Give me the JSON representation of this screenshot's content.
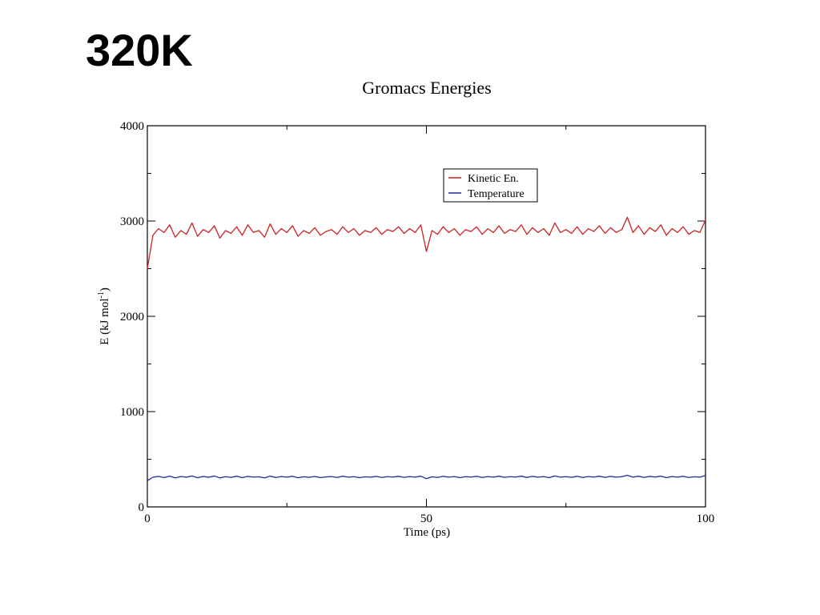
{
  "slide": {
    "title": "320K"
  },
  "chart_data": {
    "type": "line",
    "title": "Gromacs Energies",
    "xlabel": "Time (ps)",
    "ylabel": {
      "base": "E (kJ mol",
      "sup": "-1",
      "close": ")"
    },
    "xlim": [
      0,
      100
    ],
    "ylim": [
      0,
      4000
    ],
    "xticks": [
      0,
      50,
      100
    ],
    "yticks": [
      0,
      1000,
      2000,
      3000,
      4000
    ],
    "grid": false,
    "legend_position": "top-right",
    "series": [
      {
        "name": "Kinetic En.",
        "color": "#cc2222",
        "x": [
          0,
          1,
          2,
          3,
          4,
          5,
          6,
          7,
          8,
          9,
          10,
          11,
          12,
          13,
          14,
          15,
          16,
          17,
          18,
          19,
          20,
          21,
          22,
          23,
          24,
          25,
          26,
          27,
          28,
          29,
          30,
          31,
          32,
          33,
          34,
          35,
          36,
          37,
          38,
          39,
          40,
          41,
          42,
          43,
          44,
          45,
          46,
          47,
          48,
          49,
          50,
          51,
          52,
          53,
          54,
          55,
          56,
          57,
          58,
          59,
          60,
          61,
          62,
          63,
          64,
          65,
          66,
          67,
          68,
          69,
          70,
          71,
          72,
          73,
          74,
          75,
          76,
          77,
          78,
          79,
          80,
          81,
          82,
          83,
          84,
          85,
          86,
          87,
          88,
          89,
          90,
          91,
          92,
          93,
          94,
          95,
          96,
          97,
          98,
          99,
          100
        ],
        "y": [
          2500,
          2850,
          2920,
          2880,
          2960,
          2830,
          2900,
          2860,
          2980,
          2840,
          2910,
          2880,
          2950,
          2820,
          2900,
          2870,
          2940,
          2850,
          2960,
          2880,
          2900,
          2830,
          2970,
          2860,
          2920,
          2880,
          2950,
          2840,
          2900,
          2870,
          2930,
          2850,
          2890,
          2910,
          2860,
          2940,
          2880,
          2920,
          2850,
          2900,
          2880,
          2930,
          2860,
          2910,
          2890,
          2940,
          2870,
          2920,
          2880,
          2960,
          2680,
          2900,
          2860,
          2940,
          2880,
          2920,
          2850,
          2910,
          2890,
          2940,
          2860,
          2920,
          2880,
          2950,
          2870,
          2910,
          2890,
          2960,
          2860,
          2930,
          2880,
          2920,
          2850,
          2980,
          2880,
          2910,
          2870,
          2940,
          2860,
          2920,
          2890,
          2950,
          2870,
          2930,
          2880,
          2910,
          3040,
          2880,
          2950,
          2860,
          2930,
          2890,
          2960,
          2850,
          2920,
          2880,
          2940,
          2860,
          2900,
          2880,
          3010
        ]
      },
      {
        "name": "Temperature",
        "color": "#1c2a9c",
        "x": [
          0,
          1,
          2,
          3,
          4,
          5,
          6,
          7,
          8,
          9,
          10,
          11,
          12,
          13,
          14,
          15,
          16,
          17,
          18,
          19,
          20,
          21,
          22,
          23,
          24,
          25,
          26,
          27,
          28,
          29,
          30,
          31,
          32,
          33,
          34,
          35,
          36,
          37,
          38,
          39,
          40,
          41,
          42,
          43,
          44,
          45,
          46,
          47,
          48,
          49,
          50,
          51,
          52,
          53,
          54,
          55,
          56,
          57,
          58,
          59,
          60,
          61,
          62,
          63,
          64,
          65,
          66,
          67,
          68,
          69,
          70,
          71,
          72,
          73,
          74,
          75,
          76,
          77,
          78,
          79,
          80,
          81,
          82,
          83,
          84,
          85,
          86,
          87,
          88,
          89,
          90,
          91,
          92,
          93,
          94,
          95,
          96,
          97,
          98,
          99,
          100
        ],
        "y": [
          275,
          312,
          320,
          308,
          322,
          305,
          318,
          312,
          325,
          306,
          319,
          311,
          324,
          304,
          317,
          310,
          322,
          307,
          320,
          313,
          316,
          305,
          323,
          309,
          318,
          312,
          321,
          306,
          316,
          311,
          319,
          308,
          314,
          318,
          309,
          322,
          312,
          317,
          307,
          316,
          312,
          320,
          309,
          317,
          313,
          321,
          310,
          318,
          312,
          323,
          296,
          316,
          309,
          321,
          312,
          318,
          307,
          317,
          313,
          321,
          309,
          318,
          312,
          322,
          310,
          317,
          313,
          323,
          309,
          320,
          312,
          318,
          307,
          325,
          312,
          317,
          310,
          321,
          309,
          318,
          313,
          322,
          310,
          320,
          312,
          317,
          332,
          312,
          322,
          309,
          320,
          313,
          323,
          307,
          318,
          312,
          321,
          309,
          316,
          312,
          330
        ]
      }
    ]
  }
}
